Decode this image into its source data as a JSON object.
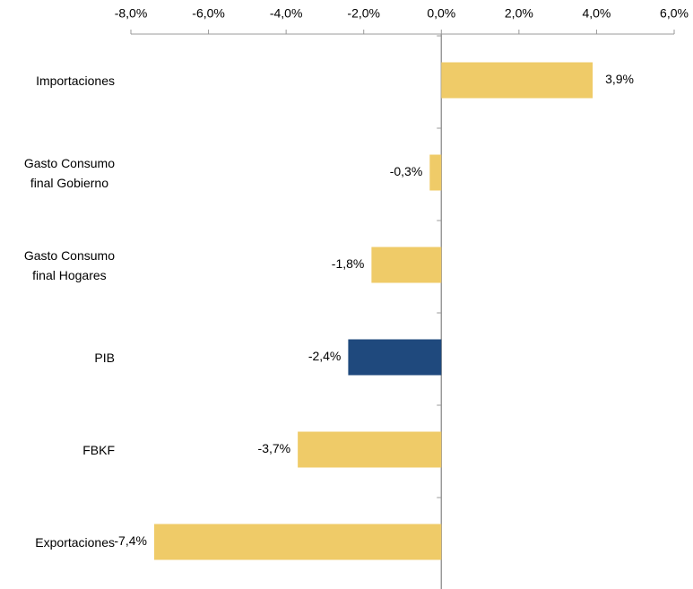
{
  "chart_data": {
    "type": "hbar",
    "categories": [
      "Importaciones",
      "Gasto Consumo\nfinal Gobierno",
      "Gasto Consumo\nfinal Hogares",
      "PIB",
      "FBKF",
      "Exportaciones"
    ],
    "values": [
      3.9,
      -0.3,
      -1.8,
      -2.4,
      -3.7,
      -7.4
    ],
    "value_labels": [
      "3,9%",
      "-0,3%",
      "-1,8%",
      "-2,4%",
      "-3,7%",
      "-7,4%"
    ],
    "colors": [
      "#efcb68",
      "#efcb68",
      "#efcb68",
      "#1f497d",
      "#efcb68",
      "#efcb68"
    ],
    "xlim": [
      -8,
      6
    ],
    "xticks": [
      {
        "value": -8,
        "label": "-8,0%"
      },
      {
        "value": -6,
        "label": "-6,0%"
      },
      {
        "value": -4,
        "label": "-4,0%"
      },
      {
        "value": -2,
        "label": "-2,0%"
      },
      {
        "value": 0,
        "label": "0,0%"
      },
      {
        "value": 2,
        "label": "2,0%"
      },
      {
        "value": 4,
        "label": "4,0%"
      },
      {
        "value": 6,
        "label": "6,0%"
      }
    ],
    "xaxis_position": "top",
    "grid": false
  }
}
